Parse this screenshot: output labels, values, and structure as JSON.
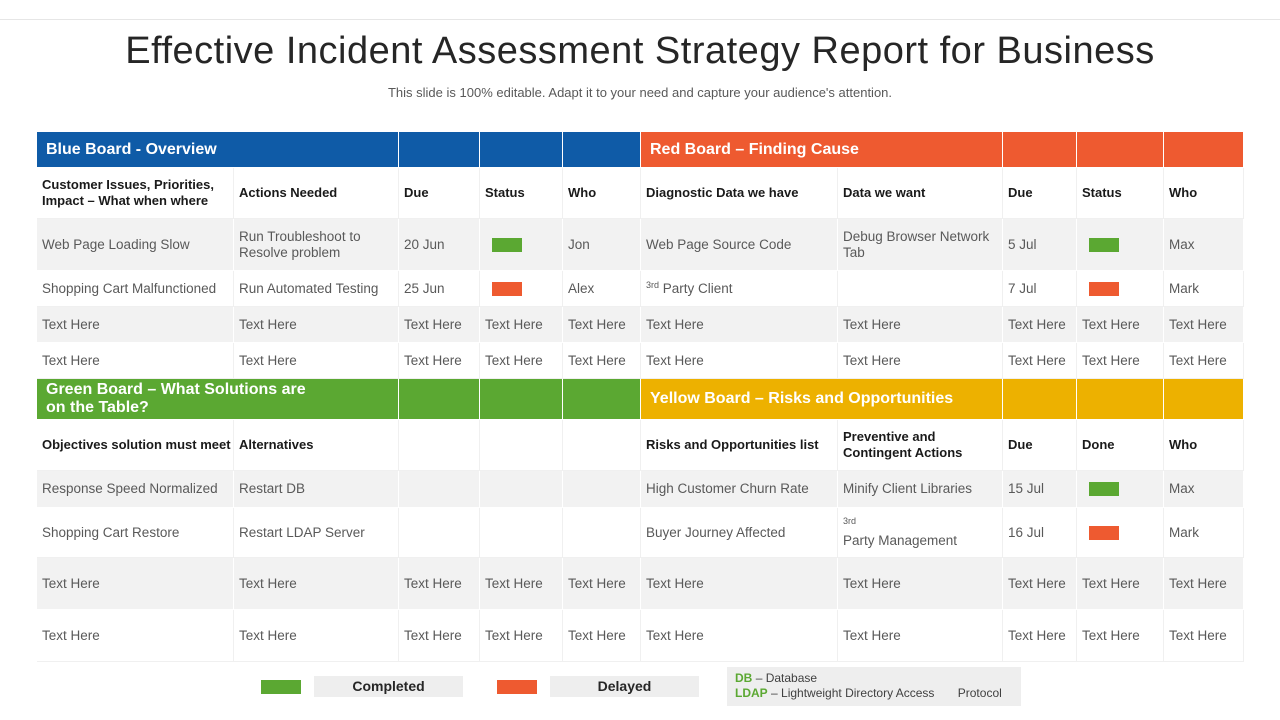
{
  "slide": {
    "title": "Effective Incident Assessment Strategy Report for Business",
    "subtitle": "This slide is 100% editable. Adapt it to your need and capture your audience's attention."
  },
  "colors": {
    "blue": "#0f5ba7",
    "red": "#ee5a30",
    "green": "#5ba832",
    "yellow": "#edb100"
  },
  "boards": {
    "blue": "Blue Board - Overview",
    "red": "Red Board – Finding Cause",
    "green": "Green Board – What Solutions are on the Table?",
    "yellow": "Yellow Board – Risks and Opportunities"
  },
  "headers1": {
    "issues": "Customer Issues, Priorities, Impact – What when where",
    "actions": "Actions Needed",
    "due": "Due",
    "status": "Status",
    "who": "Who",
    "diag": "Diagnostic Data we have",
    "want": "Data we want",
    "due2": "Due",
    "status2": "Status",
    "who2": "Who"
  },
  "headers2": {
    "objectives": "Objectives solution must meet",
    "alternatives": "Alternatives",
    "risks": "Risks and Opportunities list",
    "preventive": "Preventive and Contingent Actions",
    "due": "Due",
    "done": "Done",
    "who": "Who"
  },
  "rows1": [
    {
      "issue": "Web Page Loading Slow",
      "action": "Run Troubleshoot to Resolve problem",
      "due": "20 Jun",
      "status": "Completed",
      "who": "Jon",
      "diag": "Web Page Source Code",
      "want": "Debug Browser Network Tab",
      "due2": "5 Jul",
      "status2": "Completed",
      "who2": "Max"
    },
    {
      "issue": "Shopping Cart Malfunctioned",
      "action": "Run Automated Testing",
      "due": "25 Jun",
      "status": "Delayed",
      "who": "Alex",
      "diag_sup": "3rd",
      "diag": " Party Client",
      "want": "",
      "due2": "7 Jul",
      "status2": "Delayed",
      "who2": "Mark"
    }
  ],
  "rows2": [
    {
      "objective": "Response Speed Normalized",
      "alternative": "Restart DB",
      "risk": "High Customer Churn Rate",
      "preventive": "Minify Client Libraries",
      "due": "15 Jul",
      "done": "Completed",
      "who": "Max"
    },
    {
      "objective": "Shopping Cart Restore",
      "alternative": "Restart LDAP Server",
      "risk": "Buyer Journey Affected",
      "preventive_sup": "3rd",
      "preventive": "Party Management",
      "due": "16 Jul",
      "done": "Delayed",
      "who": "Mark"
    }
  ],
  "placeholder": "Text Here",
  "legend": {
    "completed": "Completed",
    "delayed": "Delayed"
  },
  "abbreviations": [
    {
      "abbr": "DB",
      "meaning": "– Database"
    },
    {
      "abbr": "LDAP",
      "meaning": "– Lightweight Directory Access       Protocol"
    }
  ]
}
